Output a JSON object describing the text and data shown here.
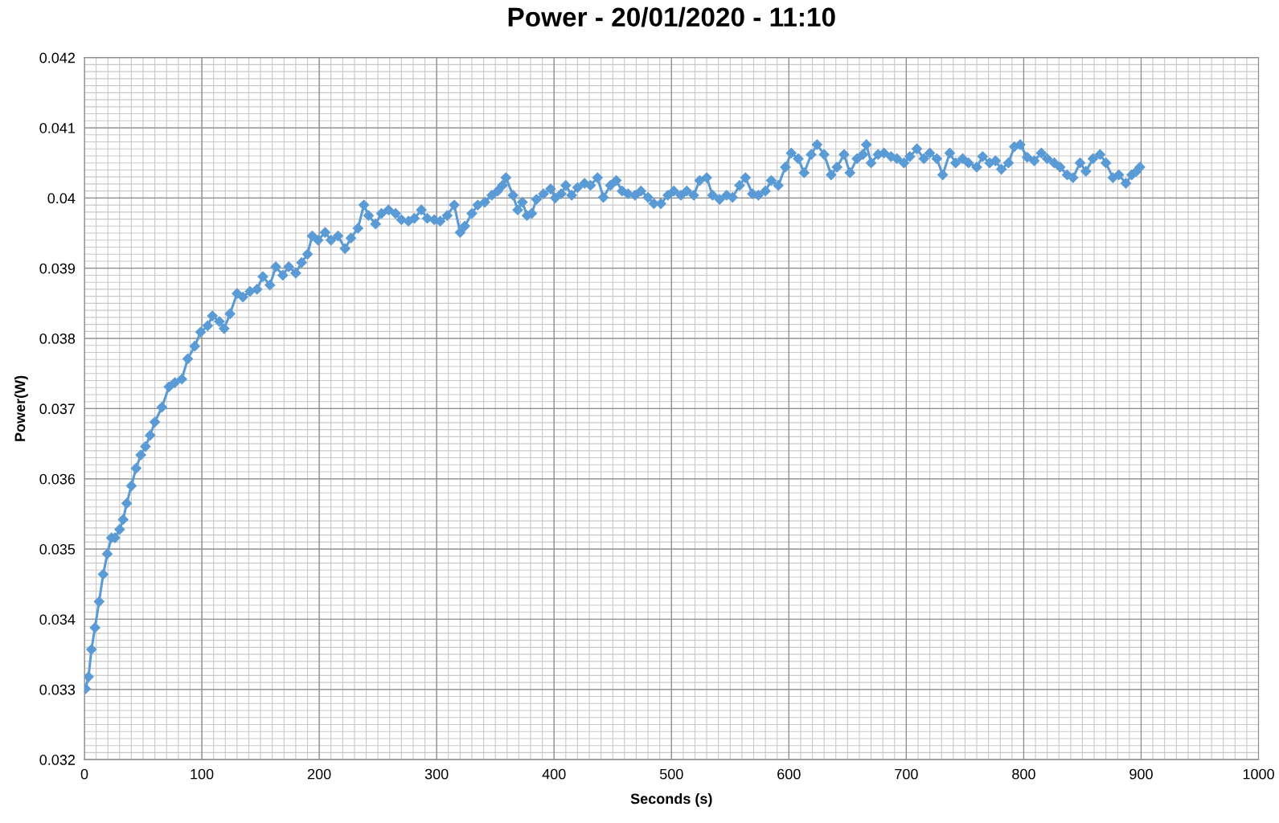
{
  "chart_data": {
    "type": "line",
    "title": "Power - 20/01/2020 - 11:10",
    "xlabel": "Seconds (s)",
    "ylabel": "Power(W)",
    "xlim": [
      0,
      1000
    ],
    "xticks": [
      0,
      100,
      200,
      300,
      400,
      500,
      600,
      700,
      800,
      900,
      1000
    ],
    "ylim": [
      0.032,
      0.042
    ],
    "yticks": [
      {
        "value": 0.032,
        "label": "0.032"
      },
      {
        "value": 0.033,
        "label": "0.033"
      },
      {
        "value": 0.034,
        "label": "0.034"
      },
      {
        "value": 0.035,
        "label": "0.035"
      },
      {
        "value": 0.036,
        "label": "0.036"
      },
      {
        "value": 0.037,
        "label": "0.037"
      },
      {
        "value": 0.038,
        "label": "0.038"
      },
      {
        "value": 0.039,
        "label": "0.039"
      },
      {
        "value": 0.04,
        "label": "0.04"
      },
      {
        "value": 0.041,
        "label": "0.041"
      },
      {
        "value": 0.042,
        "label": "0.042"
      }
    ],
    "grid": true,
    "marker": "diamond",
    "line_style": "solid",
    "x": [
      1,
      3.5,
      6,
      9,
      12.5,
      16,
      19.5,
      23,
      26,
      30,
      33,
      36,
      40,
      44,
      48,
      52,
      56,
      60,
      66,
      72,
      77,
      83,
      88,
      94,
      99,
      105,
      109,
      115,
      119,
      124,
      130,
      135,
      141,
      147,
      152,
      158,
      163,
      169,
      174,
      180,
      185,
      190,
      194,
      199,
      205,
      210,
      216,
      222,
      227,
      233,
      238,
      242,
      248,
      253,
      259,
      265,
      270,
      276,
      281,
      287,
      292,
      298,
      303,
      309,
      315,
      320,
      324,
      330,
      335,
      341,
      347,
      352,
      356,
      359,
      365,
      369,
      373,
      377,
      381,
      385,
      391,
      397,
      401,
      406,
      410,
      415,
      420,
      426,
      431,
      437,
      442,
      448,
      453,
      458,
      463,
      469,
      474,
      480,
      485,
      491,
      497,
      502,
      508,
      513,
      519,
      524,
      530,
      535,
      541,
      547,
      552,
      558,
      563,
      569,
      574,
      580,
      585,
      591,
      597,
      602,
      608,
      613,
      619,
      624,
      630,
      636,
      641,
      647,
      652,
      658,
      663,
      666,
      670,
      676,
      681,
      687,
      692,
      698,
      703,
      709,
      715,
      720,
      726,
      731,
      737,
      742,
      748,
      753,
      760,
      765,
      771,
      776,
      781,
      787,
      792,
      797,
      803,
      809,
      815,
      820,
      826,
      831,
      837,
      842,
      848,
      853,
      859,
      865,
      870,
      876,
      881,
      887,
      892,
      896,
      899
    ],
    "series": [
      {
        "color": "#5b9bd5",
        "values": [
          0.03301,
          0.03318,
          0.03357,
          0.03388,
          0.03425,
          0.03464,
          0.03493,
          0.03516,
          0.03516,
          0.03528,
          0.03542,
          0.03565,
          0.0359,
          0.03615,
          0.03634,
          0.03646,
          0.03662,
          0.03681,
          0.03702,
          0.03731,
          0.03737,
          0.03742,
          0.03771,
          0.03789,
          0.03809,
          0.03818,
          0.03832,
          0.03824,
          0.03814,
          0.03835,
          0.03864,
          0.03859,
          0.03867,
          0.0387,
          0.03888,
          0.03876,
          0.03902,
          0.0389,
          0.03902,
          0.03893,
          0.03908,
          0.0392,
          0.03946,
          0.0394,
          0.03951,
          0.0394,
          0.03946,
          0.03928,
          0.03943,
          0.03957,
          0.0399,
          0.03975,
          0.03963,
          0.03978,
          0.03983,
          0.03978,
          0.03969,
          0.03967,
          0.03971,
          0.03983,
          0.03971,
          0.03969,
          0.03967,
          0.03975,
          0.0399,
          0.03951,
          0.0396,
          0.03978,
          0.0399,
          0.03994,
          0.04004,
          0.0401,
          0.04018,
          0.04029,
          0.04004,
          0.03983,
          0.03994,
          0.03975,
          0.03978,
          0.03998,
          0.04006,
          0.04013,
          0.04,
          0.04006,
          0.04018,
          0.04004,
          0.04015,
          0.04021,
          0.04018,
          0.04029,
          0.04001,
          0.04018,
          0.04025,
          0.0401,
          0.04006,
          0.04004,
          0.0401,
          0.04001,
          0.03992,
          0.03992,
          0.04004,
          0.0401,
          0.04004,
          0.0401,
          0.04004,
          0.04025,
          0.04029,
          0.04004,
          0.03998,
          0.04004,
          0.04001,
          0.04018,
          0.04029,
          0.04006,
          0.04004,
          0.0401,
          0.04025,
          0.04018,
          0.04044,
          0.04064,
          0.04056,
          0.04036,
          0.04062,
          0.04076,
          0.04062,
          0.04033,
          0.04044,
          0.04062,
          0.04036,
          0.04056,
          0.04062,
          0.04076,
          0.0405,
          0.04062,
          0.04064,
          0.04059,
          0.04056,
          0.0405,
          0.04059,
          0.0407,
          0.04056,
          0.04064,
          0.04056,
          0.04033,
          0.04064,
          0.0405,
          0.04056,
          0.0405,
          0.04044,
          0.04059,
          0.0405,
          0.04053,
          0.04041,
          0.0405,
          0.04073,
          0.04076,
          0.04058,
          0.04053,
          0.04064,
          0.04056,
          0.0405,
          0.04044,
          0.04033,
          0.04029,
          0.0405,
          0.04038,
          0.04056,
          0.04062,
          0.0405,
          0.04029,
          0.04033,
          0.04021,
          0.04033,
          0.04038,
          0.04044
        ]
      }
    ]
  }
}
